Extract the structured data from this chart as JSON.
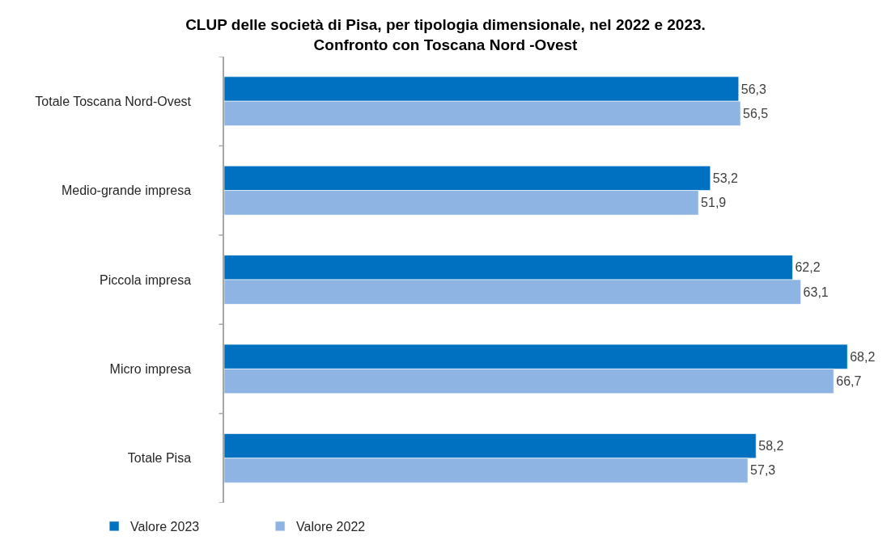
{
  "chart_data": {
    "type": "bar",
    "orientation": "horizontal",
    "title": "CLUP delle società di Pisa, per tipologia dimensionale, nel 2022 e 2023.\nConfronto con Toscana Nord -Ovest",
    "categories": [
      "Totale Toscana Nord-Ovest",
      "Medio-grande impresa",
      "Piccola impresa",
      "Micro impresa",
      "Totale Pisa"
    ],
    "series": [
      {
        "name": "Valore 2023",
        "color": "#0070c0",
        "values": [
          56.3,
          53.2,
          62.2,
          68.2,
          58.2
        ],
        "value_labels": [
          "56,3",
          "53,2",
          "62,2",
          "68,2",
          "58,2"
        ]
      },
      {
        "name": "Valore 2022",
        "color": "#8db4e2",
        "values": [
          56.5,
          51.9,
          63.1,
          66.7,
          57.3
        ],
        "value_labels": [
          "56,5",
          "51,9",
          "63,1",
          "66,7",
          "57,3"
        ]
      }
    ],
    "legend": "bottom left",
    "tick_labels": "y"
  }
}
